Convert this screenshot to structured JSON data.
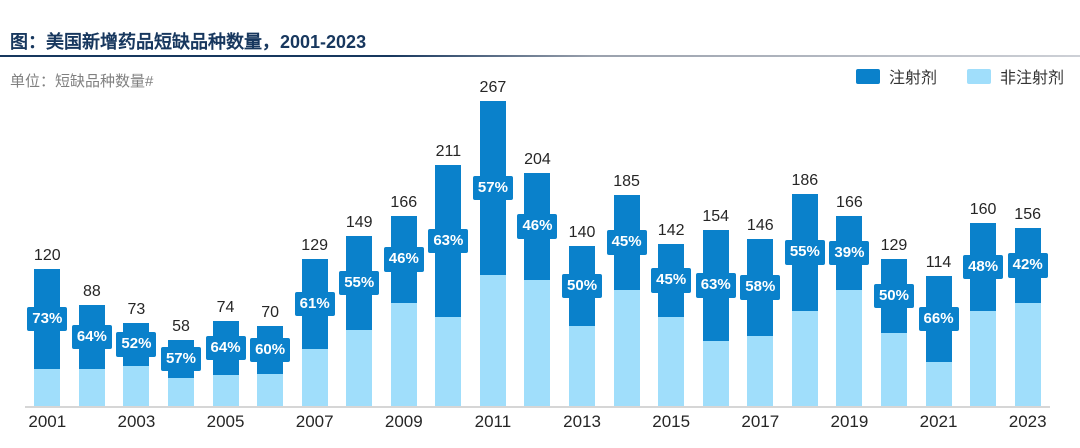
{
  "header": {
    "title": "图：美国新增药品短缺品种数量，2001-2023",
    "unit_label": "单位：短缺品种数量#"
  },
  "legend": [
    {
      "name": "injectable-swatch",
      "label": "注射剂",
      "color": "#0A81CB"
    },
    {
      "name": "non-injectable-swatch",
      "label": "非注射剂",
      "color": "#A0DEFB"
    }
  ],
  "colors": {
    "injectable": "#0A81CB",
    "non_injectable": "#A0DEFB",
    "pct_label_bg": "#0A81CB",
    "pct_label_text": "#FFFFFF",
    "title": "#17375E",
    "axis_line": "#D6D6D6"
  },
  "chart_data": {
    "type": "bar",
    "stacked": true,
    "title": "美国新增药品短缺品种数量，2001-2023",
    "ylabel": "短缺品种数量#",
    "legend_position": "top-right",
    "grid": false,
    "x_tick_step": 2,
    "categories": [
      2001,
      2002,
      2003,
      2004,
      2005,
      2006,
      2007,
      2008,
      2009,
      2010,
      2011,
      2012,
      2013,
      2014,
      2015,
      2016,
      2017,
      2018,
      2019,
      2020,
      2021,
      2022,
      2023
    ],
    "totals": [
      120,
      88,
      73,
      58,
      74,
      70,
      129,
      149,
      166,
      211,
      267,
      204,
      140,
      185,
      142,
      154,
      146,
      186,
      166,
      129,
      114,
      160,
      156
    ],
    "injectable_pct_labels": [
      "73%",
      "64%",
      "52%",
      "57%",
      "64%",
      "60%",
      "61%",
      "55%",
      "46%",
      "63%",
      "57%",
      "46%",
      "50%",
      "45%",
      "45%",
      "63%",
      "58%",
      "55%",
      "39%",
      "50%",
      "66%",
      "48%",
      "42%"
    ],
    "series": [
      {
        "name": "注射剂",
        "role": "injectable",
        "share_of_total_pct": [
          73,
          64,
          52,
          57,
          64,
          60,
          61,
          55,
          46,
          63,
          57,
          46,
          50,
          45,
          45,
          63,
          58,
          55,
          39,
          50,
          66,
          48,
          42
        ]
      },
      {
        "name": "非注射剂",
        "role": "non-injectable",
        "share_of_total_pct": [
          27,
          36,
          48,
          43,
          36,
          40,
          39,
          45,
          54,
          37,
          43,
          54,
          50,
          55,
          55,
          37,
          42,
          45,
          61,
          50,
          34,
          52,
          58
        ]
      }
    ]
  }
}
